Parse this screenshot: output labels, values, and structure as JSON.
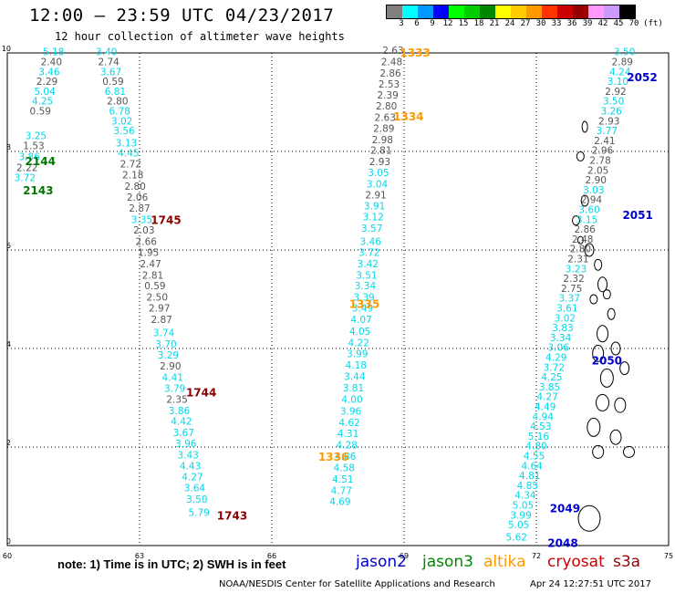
{
  "title": "12:00 – 23:59 UTC 04/23/2017",
  "subtitle": "12 hour collection of altimeter wave heights",
  "colorbar": {
    "labels": [
      "3",
      "6",
      "9",
      "12",
      "15",
      "18",
      "21",
      "24",
      "27",
      "30",
      "33",
      "36",
      "39",
      "42",
      "45",
      "70",
      "(ft)"
    ],
    "colors": [
      "#7f7f7f",
      "#00ffff",
      "#0099ff",
      "#0000ff",
      "#00ff00",
      "#00cc00",
      "#008800",
      "#ffff00",
      "#ffcc00",
      "#ff9900",
      "#ff3300",
      "#cc0000",
      "#990000",
      "#ff99ff",
      "#cc99ff",
      "#000000"
    ]
  },
  "axes": {
    "x_ticks": [
      "60",
      "63",
      "66",
      "69",
      "72",
      "75"
    ],
    "y_ticks": [
      "0",
      "2",
      "4",
      "6",
      "8",
      "10"
    ]
  },
  "colors": {
    "gray": "#555555",
    "cyan": "#00d8e8",
    "red": "#8b0000",
    "green": "#007700",
    "orange": "#ff9900",
    "blue": "#0000cc"
  },
  "tracks": [
    {
      "color": "cyan",
      "passLabel": {
        "text": "2144",
        "color": "green",
        "lon": 60.75,
        "lat": 7.8
      },
      "points": [
        [
          61.05,
          9.95,
          "5.18",
          "cyan"
        ],
        [
          61.0,
          9.75,
          "2.40",
          "gray"
        ],
        [
          60.95,
          9.55,
          "3.46",
          "cyan"
        ],
        [
          60.9,
          9.35,
          "2.29",
          "gray"
        ],
        [
          60.85,
          9.15,
          "5.04",
          "cyan"
        ],
        [
          60.8,
          8.95,
          "4.25",
          "cyan"
        ],
        [
          60.75,
          8.75,
          "0.59",
          "gray"
        ],
        [
          60.65,
          8.25,
          "3.25",
          "cyan"
        ],
        [
          60.6,
          8.05,
          "1.53",
          "gray"
        ],
        [
          60.5,
          7.82,
          "3.86",
          "cyan"
        ],
        [
          60.45,
          7.6,
          "2.22",
          "gray"
        ]
      ]
    },
    {
      "color": "cyan",
      "passLabel": {
        "text": "2143",
        "color": "green",
        "lon": 60.7,
        "lat": 7.2
      },
      "points": [
        [
          60.4,
          7.4,
          "3.72",
          "cyan"
        ]
      ]
    },
    {
      "color": "mix",
      "passLabel": {
        "text": "1745",
        "color": "red",
        "lon": 63.6,
        "lat": 6.6
      },
      "points": [
        [
          62.25,
          9.95,
          "3.40",
          "cyan"
        ],
        [
          62.3,
          9.75,
          "2.74",
          "gray"
        ],
        [
          62.35,
          9.55,
          "3.67",
          "cyan"
        ],
        [
          62.4,
          9.35,
          "0.59",
          "gray"
        ],
        [
          62.45,
          9.15,
          "6.81",
          "cyan"
        ],
        [
          62.5,
          8.95,
          "2.80",
          "gray"
        ],
        [
          62.55,
          8.75,
          "6.78",
          "cyan"
        ],
        [
          62.6,
          8.55,
          "3.02",
          "cyan"
        ],
        [
          62.65,
          8.35,
          "3.56",
          "cyan"
        ],
        [
          62.7,
          8.1,
          "3.13",
          "cyan"
        ],
        [
          62.75,
          7.9,
          "4.45",
          "cyan"
        ],
        [
          62.8,
          7.68,
          "2.72",
          "gray"
        ],
        [
          62.85,
          7.45,
          "2.18",
          "gray"
        ],
        [
          62.9,
          7.22,
          "2.80",
          "gray"
        ],
        [
          62.95,
          7.0,
          "2.06",
          "gray"
        ],
        [
          63.0,
          6.78,
          "2.87",
          "gray"
        ],
        [
          63.05,
          6.55,
          "3.35",
          "cyan"
        ],
        [
          63.1,
          6.33,
          "2.03",
          "gray"
        ],
        [
          63.15,
          6.1,
          "2.66",
          "gray"
        ],
        [
          63.2,
          5.88,
          "1.95",
          "gray"
        ],
        [
          63.25,
          5.65,
          "2.47",
          "gray"
        ],
        [
          63.3,
          5.42,
          "2.81",
          "gray"
        ],
        [
          63.35,
          5.2,
          "0.59",
          "gray"
        ],
        [
          63.4,
          4.97,
          "2.50",
          "gray"
        ],
        [
          63.45,
          4.75,
          "2.97",
          "gray"
        ],
        [
          63.5,
          4.52,
          "2.87",
          "gray"
        ]
      ]
    },
    {
      "color": "mix",
      "passLabel": {
        "text": "1744",
        "color": "red",
        "lon": 64.4,
        "lat": 3.1
      },
      "points": [
        [
          63.55,
          4.25,
          "3.74",
          "cyan"
        ],
        [
          63.6,
          4.02,
          "3.70",
          "cyan"
        ],
        [
          63.65,
          3.8,
          "3.29",
          "cyan"
        ],
        [
          63.7,
          3.57,
          "2.90",
          "gray"
        ],
        [
          63.75,
          3.34,
          "4.41",
          "cyan"
        ],
        [
          63.8,
          3.12,
          "3.79",
          "cyan"
        ],
        [
          63.85,
          2.9,
          "2.35",
          "gray"
        ],
        [
          63.9,
          2.67,
          "3.86",
          "cyan"
        ],
        [
          63.95,
          2.45,
          "4.42",
          "cyan"
        ],
        [
          64.0,
          2.22,
          "3.67",
          "cyan"
        ],
        [
          64.05,
          2.0,
          "3.96",
          "cyan"
        ],
        [
          64.1,
          1.77,
          "3.43",
          "cyan"
        ],
        [
          64.15,
          1.55,
          "4.43",
          "cyan"
        ],
        [
          64.2,
          1.32,
          "4.27",
          "cyan"
        ],
        [
          64.25,
          1.1,
          "3.64",
          "cyan"
        ],
        [
          64.3,
          0.87,
          "3.50",
          "cyan"
        ],
        [
          64.35,
          0.6,
          "5.79",
          "cyan"
        ]
      ]
    },
    {
      "color": "mix",
      "passLabel": {
        "text": "1743",
        "color": "red",
        "lon": 65.1,
        "lat": 0.6
      },
      "points": []
    },
    {
      "color": "mix",
      "passLabel": {
        "text": "1333",
        "color": "orange",
        "lon": 69.25,
        "lat": 10.0
      },
      "points": [
        [
          68.75,
          9.98,
          "2.63",
          "gray"
        ],
        [
          68.72,
          9.75,
          "2.48",
          "gray"
        ],
        [
          68.69,
          9.52,
          "2.86",
          "gray"
        ],
        [
          68.66,
          9.3,
          "2.53",
          "gray"
        ],
        [
          68.63,
          9.07,
          "2.39",
          "gray"
        ],
        [
          68.6,
          8.85,
          "2.80",
          "gray"
        ],
        [
          68.57,
          8.62,
          "2.63",
          "gray"
        ],
        [
          68.54,
          8.4,
          "2.89",
          "gray"
        ],
        [
          68.51,
          8.17,
          "2.98",
          "gray"
        ],
        [
          68.48,
          7.95,
          "2.81",
          "gray"
        ],
        [
          68.45,
          7.72,
          "2.93",
          "gray"
        ],
        [
          68.42,
          7.5,
          "3.05",
          "cyan"
        ],
        [
          68.39,
          7.27,
          "3.04",
          "cyan"
        ],
        [
          68.36,
          7.05,
          "2.91",
          "gray"
        ],
        [
          68.33,
          6.82,
          "3.91",
          "cyan"
        ],
        [
          68.3,
          6.6,
          "3.12",
          "cyan"
        ],
        [
          68.27,
          6.37,
          "3.57",
          "cyan"
        ],
        [
          68.24,
          6.1,
          "3.46",
          "cyan"
        ],
        [
          68.21,
          5.88,
          "3.72",
          "cyan"
        ],
        [
          68.18,
          5.65,
          "3.42",
          "cyan"
        ],
        [
          68.15,
          5.42,
          "3.51",
          "cyan"
        ],
        [
          68.12,
          5.2,
          "3.34",
          "cyan"
        ],
        [
          68.09,
          4.97,
          "3.39",
          "cyan"
        ],
        [
          68.06,
          4.75,
          "3.49",
          "cyan"
        ],
        [
          68.03,
          4.52,
          "4.07",
          "cyan"
        ],
        [
          68.0,
          4.28,
          "4.05",
          "cyan"
        ],
        [
          67.97,
          4.05,
          "4.22",
          "cyan"
        ],
        [
          67.94,
          3.82,
          "3.99",
          "cyan"
        ],
        [
          67.91,
          3.59,
          "4.18",
          "cyan"
        ],
        [
          67.88,
          3.36,
          "3.44",
          "cyan"
        ],
        [
          67.85,
          3.13,
          "3.81",
          "cyan"
        ],
        [
          67.82,
          2.9,
          "4.00",
          "cyan"
        ],
        [
          67.79,
          2.66,
          "3.96",
          "cyan"
        ],
        [
          67.76,
          2.43,
          "4.62",
          "cyan"
        ],
        [
          67.73,
          2.2,
          "4.31",
          "cyan"
        ],
        [
          67.7,
          1.97,
          "4.28",
          "cyan"
        ],
        [
          67.67,
          1.74,
          "4.86",
          "cyan"
        ],
        [
          67.64,
          1.51,
          "4.58",
          "cyan"
        ],
        [
          67.61,
          1.28,
          "4.51",
          "cyan"
        ],
        [
          67.58,
          1.05,
          "4.77",
          "cyan"
        ],
        [
          67.55,
          0.82,
          "4.69",
          "cyan"
        ]
      ]
    },
    {
      "color": "mix",
      "passLabel": {
        "text": "1334",
        "color": "orange",
        "lon": 69.1,
        "lat": 8.7
      },
      "points": []
    },
    {
      "color": "mix",
      "passLabel": {
        "text": "1335",
        "color": "orange",
        "lon": 68.1,
        "lat": 4.9
      },
      "points": []
    },
    {
      "color": "mix",
      "passLabel": {
        "text": "1336",
        "color": "orange",
        "lon": 67.4,
        "lat": 1.8
      },
      "points": []
    },
    {
      "color": "mix",
      "passLabel": {
        "text": "2052",
        "color": "blue",
        "lon": 74.4,
        "lat": 9.5
      },
      "points": [
        [
          74.0,
          9.95,
          "3.50",
          "cyan"
        ],
        [
          73.95,
          9.75,
          "2.89",
          "gray"
        ],
        [
          73.9,
          9.55,
          "4.24",
          "cyan"
        ],
        [
          73.85,
          9.35,
          "3.10",
          "cyan"
        ],
        [
          73.8,
          9.15,
          "2.92",
          "gray"
        ],
        [
          73.75,
          8.95,
          "3.50",
          "cyan"
        ],
        [
          73.7,
          8.75,
          "3.26",
          "cyan"
        ],
        [
          73.65,
          8.55,
          "2.93",
          "gray"
        ],
        [
          73.6,
          8.35,
          "3.77",
          "cyan"
        ],
        [
          73.55,
          8.15,
          "2.41",
          "gray"
        ],
        [
          73.5,
          7.95,
          "2.96",
          "gray"
        ],
        [
          73.45,
          7.75,
          "2.78",
          "gray"
        ],
        [
          73.4,
          7.55,
          "2.05",
          "gray"
        ],
        [
          73.35,
          7.35,
          "2.90",
          "gray"
        ],
        [
          73.3,
          7.15,
          "3.03",
          "cyan"
        ],
        [
          73.25,
          6.95,
          "2.94",
          "gray"
        ]
      ]
    },
    {
      "color": "mix",
      "passLabel": {
        "text": "2051",
        "color": "blue",
        "lon": 74.3,
        "lat": 6.7
      },
      "points": [
        [
          73.2,
          6.75,
          "3.60",
          "cyan"
        ],
        [
          73.15,
          6.55,
          "3.15",
          "cyan"
        ],
        [
          73.1,
          6.35,
          "2.86",
          "gray"
        ],
        [
          73.05,
          6.15,
          "2.48",
          "gray"
        ],
        [
          73.0,
          5.95,
          "2.80",
          "gray"
        ],
        [
          72.95,
          5.75,
          "2.31",
          "gray"
        ],
        [
          72.9,
          5.55,
          "3.23",
          "cyan"
        ],
        [
          72.85,
          5.35,
          "2.32",
          "gray"
        ],
        [
          72.8,
          5.15,
          "2.75",
          "gray"
        ],
        [
          72.75,
          4.95,
          "3.37",
          "cyan"
        ],
        [
          72.7,
          4.75,
          "3.61",
          "cyan"
        ],
        [
          72.65,
          4.55,
          "3.02",
          "cyan"
        ],
        [
          72.6,
          4.35,
          "3.83",
          "cyan"
        ],
        [
          72.55,
          4.15,
          "3.34",
          "cyan"
        ],
        [
          72.5,
          3.95,
          "3.06",
          "cyan"
        ]
      ]
    },
    {
      "color": "mix",
      "passLabel": {
        "text": "2050",
        "color": "blue",
        "lon": 73.6,
        "lat": 3.75
      },
      "points": [
        [
          72.45,
          3.75,
          "4.29",
          "cyan"
        ],
        [
          72.4,
          3.55,
          "3.72",
          "cyan"
        ],
        [
          72.35,
          3.35,
          "4.25",
          "cyan"
        ],
        [
          72.3,
          3.15,
          "3.85",
          "cyan"
        ],
        [
          72.25,
          2.95,
          "4.27",
          "cyan"
        ],
        [
          72.2,
          2.75,
          "4.49",
          "cyan"
        ],
        [
          72.15,
          2.55,
          "4.94",
          "cyan"
        ],
        [
          72.1,
          2.35,
          "4.53",
          "cyan"
        ],
        [
          72.05,
          2.15,
          "5.16",
          "cyan"
        ],
        [
          72.0,
          1.95,
          "4.80",
          "cyan"
        ],
        [
          71.95,
          1.75,
          "4.55",
          "cyan"
        ],
        [
          71.9,
          1.55,
          "4.64",
          "cyan"
        ],
        [
          71.85,
          1.35,
          "4.81",
          "cyan"
        ],
        [
          71.8,
          1.15,
          "4.85",
          "cyan"
        ],
        [
          71.75,
          0.95,
          "4.34",
          "cyan"
        ]
      ]
    },
    {
      "color": "mix",
      "passLabel": {
        "text": "2049",
        "color": "blue",
        "lon": 72.65,
        "lat": 0.75
      },
      "points": [
        [
          71.7,
          0.75,
          "5.05",
          "cyan"
        ],
        [
          71.65,
          0.55,
          "3.99",
          "cyan"
        ],
        [
          71.6,
          0.35,
          "5.05",
          "cyan"
        ],
        [
          71.55,
          0.1,
          "5.62",
          "cyan"
        ]
      ]
    },
    {
      "color": "mix",
      "passLabel": {
        "text": "2048",
        "color": "blue",
        "lon": 72.6,
        "lat": 0.05
      },
      "points": []
    }
  ],
  "note": "note: 1) Time is in UTC; 2) SWH is in feet",
  "legend": [
    {
      "text": "jason2",
      "color": "#0000cc"
    },
    {
      "text": "jason3",
      "color": "#008800"
    },
    {
      "text": "altika",
      "color": "#ff9900"
    },
    {
      "text": "cryosat",
      "color": "#cc0000"
    },
    {
      "text": "s3a",
      "color": "#990000"
    }
  ],
  "footer": "NOAA/NESDIS Center for Satellite Applications and Research",
  "timestamp": "Apr 24 12:27:51 UTC 2017"
}
